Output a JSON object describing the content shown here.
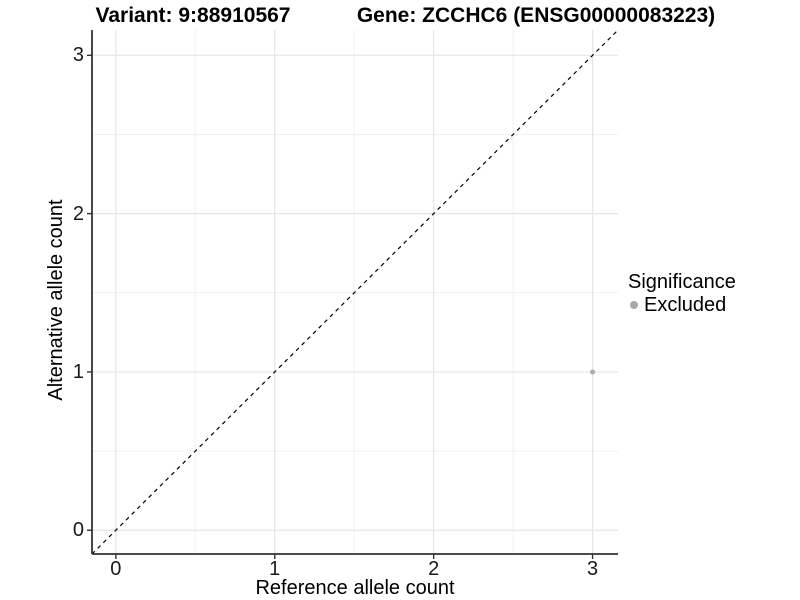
{
  "header": {
    "variant_title": "Variant: 9:88910567",
    "gene_title": "Gene: ZCCHC6 (ENSG00000083223)"
  },
  "axes": {
    "x_label": "Reference allele count",
    "y_label": "Alternative allele count",
    "x_tick_labels": [
      "0",
      "1",
      "2",
      "3"
    ],
    "y_tick_labels": [
      "0",
      "1",
      "2",
      "3"
    ]
  },
  "legend": {
    "title": "Significance",
    "items": [
      {
        "label": "Excluded",
        "marker": "dot",
        "color": "#a9a9a9"
      }
    ]
  },
  "colors": {
    "background": "#ffffff",
    "grid_major": "#e5e5e5",
    "grid_minor": "#f1f1f1",
    "axis_line": "#333333",
    "tick_mark": "#333333",
    "point": "#aeaeae",
    "reference_line": "#000000"
  },
  "chart_data": {
    "type": "scatter",
    "title": "Variant: 9:88910567    Gene: ZCCHC6 (ENSG00000083223)",
    "xlabel": "Reference allele count",
    "ylabel": "Alternative allele count",
    "xlim": [
      -0.15,
      3.16
    ],
    "ylim": [
      -0.15,
      3.16
    ],
    "x_major_ticks": [
      0,
      1,
      2,
      3
    ],
    "y_major_ticks": [
      0,
      1,
      2,
      3
    ],
    "x_minor_ticks": [
      0.5,
      1.5,
      2.5
    ],
    "y_minor_ticks": [
      0.5,
      1.5,
      2.5
    ],
    "grid": true,
    "legend_position": "right",
    "series": [
      {
        "name": "Excluded",
        "color": "#aeaeae",
        "points": [
          {
            "x": 3,
            "y": 1
          }
        ]
      }
    ],
    "reference_line": {
      "equation": "y = x",
      "style": "dashed",
      "color": "#000000",
      "span": "full-panel-diagonal"
    }
  }
}
